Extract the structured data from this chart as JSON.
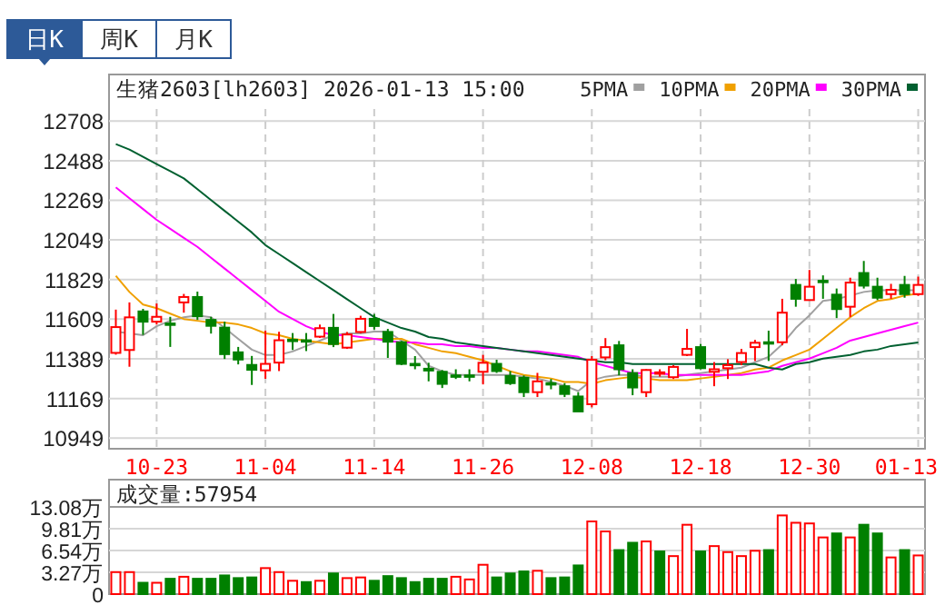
{
  "chart_data": [
    {
      "type": "candlestick",
      "title": "生猪2603[lh2603] 2026-01-13 15:00",
      "annotations": [
        "日K",
        "周K",
        "月K"
      ],
      "categories": [
        null,
        null,
        null,
        "10-23",
        null,
        null,
        null,
        null,
        null,
        null,
        null,
        "11-04",
        null,
        null,
        null,
        null,
        null,
        null,
        null,
        "11-14",
        null,
        null,
        null,
        null,
        null,
        null,
        null,
        "11-26",
        null,
        null,
        null,
        null,
        null,
        null,
        null,
        "12-08",
        null,
        null,
        null,
        null,
        null,
        null,
        null,
        "12-18",
        null,
        null,
        null,
        null,
        null,
        null,
        null,
        "12-30",
        null,
        null,
        null,
        null,
        null,
        null,
        null,
        "01-13"
      ],
      "ohlc": [
        [
          11422,
          11662,
          11412,
          11565
        ],
        [
          11438,
          11702,
          11345,
          11619
        ],
        [
          11652,
          11666,
          11522,
          11595
        ],
        [
          11595,
          11696,
          11579,
          11622
        ],
        [
          11585,
          11622,
          11455,
          11582
        ],
        [
          11702,
          11749,
          11645,
          11732
        ],
        [
          11732,
          11762,
          11605,
          11625
        ],
        [
          11605,
          11622,
          11529,
          11572
        ],
        [
          11562,
          11595,
          11388,
          11415
        ],
        [
          11425,
          11455,
          11358,
          11385
        ],
        [
          11355,
          11405,
          11244,
          11328
        ],
        [
          11325,
          11545,
          11278,
          11361
        ],
        [
          11368,
          11539,
          11321,
          11492
        ],
        [
          11495,
          11532,
          11438,
          11492
        ],
        [
          11492,
          11532,
          11432,
          11485
        ],
        [
          11512,
          11579,
          11505,
          11559
        ],
        [
          11561,
          11638,
          11454,
          11471
        ],
        [
          11451,
          11538,
          11444,
          11524
        ],
        [
          11538,
          11628,
          11531,
          11611
        ],
        [
          11611,
          11638,
          11551,
          11571
        ],
        [
          11538,
          11555,
          11394,
          11484
        ],
        [
          11481,
          11488,
          11354,
          11361
        ],
        [
          11361,
          11404,
          11331,
          11358
        ],
        [
          11334,
          11367,
          11264,
          11324
        ],
        [
          11317,
          11327,
          11227,
          11250
        ],
        [
          11297,
          11331,
          11277,
          11295
        ],
        [
          11297,
          11331,
          11264,
          11290
        ],
        [
          11317,
          11411,
          11247,
          11367
        ],
        [
          11361,
          11384,
          11311,
          11321
        ],
        [
          11294,
          11321,
          11244,
          11254
        ],
        [
          11284,
          11297,
          11177,
          11204
        ],
        [
          11204,
          11311,
          11177,
          11264
        ],
        [
          11254,
          11277,
          11220,
          11250
        ],
        [
          11237,
          11254,
          11177,
          11194
        ],
        [
          11180,
          11204,
          11097,
          11097
        ],
        [
          11137,
          11404,
          11120,
          11384
        ],
        [
          11397,
          11504,
          11381,
          11454
        ],
        [
          11464,
          11488,
          11297,
          11331
        ],
        [
          11310,
          11331,
          11187,
          11230
        ],
        [
          11204,
          11331,
          11177,
          11327
        ],
        [
          11311,
          11331,
          11290,
          11314
        ],
        [
          11287,
          11354,
          11277,
          11344
        ],
        [
          11411,
          11555,
          11404,
          11444
        ],
        [
          11454,
          11471,
          11331,
          11337
        ],
        [
          11317,
          11371,
          11237,
          11331
        ],
        [
          11337,
          11387,
          11277,
          11354
        ],
        [
          11371,
          11444,
          11354,
          11421
        ],
        [
          11454,
          11494,
          11377,
          11478
        ],
        [
          11481,
          11545,
          11377,
          11478
        ],
        [
          11481,
          11722,
          11464,
          11645
        ],
        [
          11799,
          11832,
          11678,
          11722
        ],
        [
          11715,
          11882,
          11715,
          11789
        ],
        [
          11822,
          11852,
          11722,
          11819
        ],
        [
          11745,
          11779,
          11615,
          11665
        ],
        [
          11678,
          11839,
          11621,
          11812
        ],
        [
          11865,
          11932,
          11779,
          11795
        ],
        [
          11789,
          11839,
          11715,
          11728
        ],
        [
          11748,
          11805,
          11722,
          11772
        ],
        [
          11799,
          11849,
          11728,
          11748
        ],
        [
          11748,
          11845,
          11738,
          11799
        ]
      ],
      "series": [
        {
          "name": "5PMA",
          "type": "line",
          "color": "#a0a0a0",
          "values": [
            11540,
            11530,
            11520,
            11570,
            11600,
            11620,
            11630,
            11620,
            11560,
            11500,
            11440,
            11410,
            11410,
            11430,
            11460,
            11490,
            11520,
            11530,
            11530,
            11540,
            11540,
            11490,
            11440,
            11350,
            11320,
            11300,
            11300,
            11300,
            11300,
            11300,
            11290,
            11280,
            11260,
            11240,
            11210,
            11270,
            11290,
            11300,
            11300,
            11290,
            11290,
            11290,
            11300,
            11310,
            11320,
            11330,
            11340,
            11370,
            11400,
            11470,
            11560,
            11630,
            11710,
            11720,
            11740,
            11760,
            11770,
            11770,
            11770,
            11770
          ]
        },
        {
          "name": "10PMA",
          "type": "line",
          "color": "#f0a000",
          "values": [
            11850,
            11760,
            11690,
            11670,
            11640,
            11610,
            11600,
            11590,
            11590,
            11580,
            11560,
            11530,
            11520,
            11500,
            11490,
            11480,
            11470,
            11480,
            11490,
            11500,
            11500,
            11500,
            11470,
            11450,
            11430,
            11420,
            11400,
            11380,
            11350,
            11320,
            11300,
            11290,
            11280,
            11260,
            11260,
            11250,
            11270,
            11280,
            11290,
            11280,
            11270,
            11270,
            11270,
            11280,
            11290,
            11300,
            11310,
            11330,
            11340,
            11380,
            11410,
            11440,
            11500,
            11560,
            11620,
            11670,
            11710,
            11720,
            11740,
            11750
          ]
        },
        {
          "name": "20PMA",
          "type": "line",
          "color": "#ff00ff",
          "values": [
            12340,
            12280,
            12220,
            12160,
            12110,
            12060,
            12010,
            11950,
            11890,
            11830,
            11770,
            11710,
            11650,
            11610,
            11570,
            11540,
            11520,
            11520,
            11510,
            11500,
            11490,
            11480,
            11480,
            11470,
            11470,
            11460,
            11460,
            11450,
            11450,
            11440,
            11430,
            11430,
            11420,
            11410,
            11400,
            11370,
            11350,
            11330,
            11310,
            11310,
            11310,
            11300,
            11300,
            11300,
            11300,
            11300,
            11300,
            11310,
            11320,
            11350,
            11370,
            11390,
            11420,
            11450,
            11490,
            11510,
            11530,
            11550,
            11570,
            11590
          ]
        },
        {
          "name": "30PMA",
          "type": "line",
          "color": "#006030",
          "values": [
            12580,
            12550,
            12510,
            12470,
            12430,
            12390,
            12330,
            12270,
            12210,
            12150,
            12090,
            12020,
            11970,
            11920,
            11870,
            11820,
            11770,
            11720,
            11670,
            11620,
            11590,
            11560,
            11540,
            11510,
            11500,
            11480,
            11470,
            11460,
            11450,
            11440,
            11430,
            11420,
            11410,
            11400,
            11390,
            11380,
            11370,
            11370,
            11360,
            11360,
            11360,
            11360,
            11360,
            11360,
            11360,
            11360,
            11360,
            11360,
            11340,
            11330,
            11360,
            11370,
            11390,
            11400,
            11410,
            11430,
            11440,
            11460,
            11470,
            11480
          ]
        }
      ],
      "ylim": [
        10890,
        12775
      ],
      "yticks": [
        10949,
        11169,
        11389,
        11609,
        11829,
        12049,
        12269,
        12488,
        12708
      ],
      "grid": true,
      "legend": "top right"
    },
    {
      "type": "bar",
      "title": "成交量:57954",
      "tick_labels": "y",
      "grid": "y",
      "categories": [
        null,
        null,
        null,
        null,
        null,
        null,
        null,
        null,
        null,
        null,
        null,
        null,
        null,
        null,
        null,
        null,
        null,
        null,
        null,
        null,
        null,
        null,
        null,
        null,
        null,
        null,
        null,
        null,
        null,
        null,
        null,
        null,
        null,
        null,
        null,
        null,
        null,
        null,
        null,
        null,
        null,
        null,
        null,
        null,
        null,
        null,
        null,
        null,
        null,
        null,
        null,
        null,
        null,
        null,
        null,
        null,
        null,
        null,
        null,
        null
      ],
      "values": [
        3.3,
        3.3,
        1.7,
        1.7,
        2.3,
        2.6,
        2.3,
        2.3,
        2.8,
        2.4,
        2.5,
        3.9,
        3.3,
        2.0,
        1.8,
        2.0,
        3.1,
        2.4,
        2.5,
        2.0,
        2.7,
        2.4,
        1.8,
        2.3,
        2.3,
        2.6,
        2.2,
        4.4,
        2.5,
        3.1,
        3.4,
        3.5,
        2.4,
        2.5,
        4.3,
        10.9,
        9.4,
        6.6,
        7.7,
        7.9,
        6.4,
        5.7,
        10.4,
        6.4,
        7.2,
        6.3,
        5.7,
        6.5,
        6.6,
        11.8,
        10.7,
        10.6,
        8.5,
        9.1,
        8.5,
        10.4,
        9.1,
        5.5,
        6.6,
        5.8
      ],
      "colors": [
        "#ff0000",
        "#ff0000",
        "#008000",
        "#ff0000",
        "#008000",
        "#ff0000",
        "#008000",
        "#008000",
        "#008000",
        "#008000",
        "#008000",
        "#ff0000",
        "#ff0000",
        "#ff0000",
        "#008000",
        "#ff0000",
        "#008000",
        "#ff0000",
        "#ff0000",
        "#008000",
        "#008000",
        "#008000",
        "#008000",
        "#008000",
        "#008000",
        "#ff0000",
        "#ff0000",
        "#ff0000",
        "#008000",
        "#008000",
        "#008000",
        "#ff0000",
        "#008000",
        "#008000",
        "#008000",
        "#ff0000",
        "#ff0000",
        "#008000",
        "#008000",
        "#ff0000",
        "#008000",
        "#ff0000",
        "#ff0000",
        "#008000",
        "#ff0000",
        "#ff0000",
        "#ff0000",
        "#ff0000",
        "#008000",
        "#ff0000",
        "#ff0000",
        "#ff0000",
        "#ff0000",
        "#008000",
        "#ff0000",
        "#008000",
        "#008000",
        "#ff0000",
        "#008000",
        "#ff0000"
      ],
      "ylim": [
        0,
        13.08
      ],
      "yticks": [
        0,
        {
          "value": 3.27,
          "label": "3.27万"
        },
        {
          "value": 6.54,
          "label": "6.54万"
        },
        {
          "value": 9.81,
          "label": "9.81万"
        },
        {
          "value": 13.08,
          "label": "13.08万"
        }
      ]
    }
  ]
}
